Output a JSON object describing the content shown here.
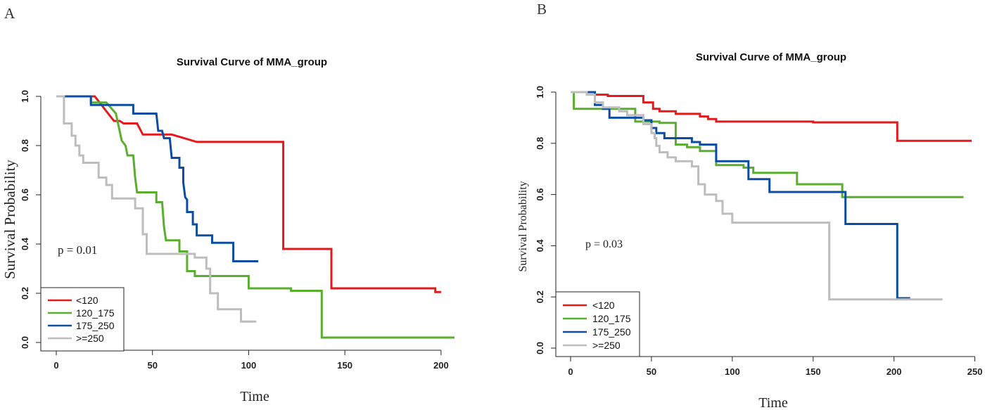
{
  "figure": {
    "panel_letters": [
      "A",
      "B"
    ]
  },
  "chart_data": [
    {
      "type": "line",
      "panel": "A",
      "title": "Survival Curve of MMA_group",
      "xlabel": "Time",
      "ylabel": "Survival Probability",
      "xlim": [
        0,
        207
      ],
      "ylim": [
        0,
        1.0
      ],
      "xticks": [
        0,
        50,
        100,
        150,
        200
      ],
      "yticks": [
        0.0,
        0.2,
        0.4,
        0.6,
        0.8,
        1.0
      ],
      "annotation": "p = 0.01",
      "legend": {
        "position": "bottom-left",
        "entries": [
          "<120",
          "120_175",
          "175_250",
          ">=250"
        ]
      },
      "series": [
        {
          "name": "<120",
          "color": "#e31a1c",
          "points": [
            [
              0,
              1.0
            ],
            [
              20,
              1.0
            ],
            [
              30,
              0.9
            ],
            [
              33,
              0.9
            ],
            [
              35,
              0.89
            ],
            [
              42,
              0.89
            ],
            [
              45,
              0.845
            ],
            [
              60,
              0.845
            ],
            [
              73,
              0.815
            ],
            [
              118,
              0.815
            ],
            [
              118,
              0.38
            ],
            [
              143,
              0.38
            ],
            [
              143,
              0.22
            ],
            [
              197,
              0.22
            ],
            [
              197,
              0.205
            ],
            [
              200,
              0.205
            ]
          ]
        },
        {
          "name": "120_175",
          "color": "#5aae2e",
          "points": [
            [
              0,
              1.0
            ],
            [
              18,
              1.0
            ],
            [
              18,
              0.975
            ],
            [
              26,
              0.975
            ],
            [
              31,
              0.93
            ],
            [
              34,
              0.82
            ],
            [
              36,
              0.8
            ],
            [
              37,
              0.76
            ],
            [
              40,
              0.76
            ],
            [
              41,
              0.67
            ],
            [
              42,
              0.61
            ],
            [
              52,
              0.61
            ],
            [
              52,
              0.57
            ],
            [
              55,
              0.57
            ],
            [
              56,
              0.47
            ],
            [
              57,
              0.415
            ],
            [
              64,
              0.415
            ],
            [
              64,
              0.37
            ],
            [
              68,
              0.37
            ],
            [
              68,
              0.29
            ],
            [
              72,
              0.29
            ],
            [
              72,
              0.27
            ],
            [
              100,
              0.27
            ],
            [
              100,
              0.22
            ],
            [
              122,
              0.22
            ],
            [
              122,
              0.21
            ],
            [
              138,
              0.21
            ],
            [
              138,
              0.02
            ],
            [
              207,
              0.02
            ]
          ]
        },
        {
          "name": "175_250",
          "color": "#0c4da2",
          "points": [
            [
              0,
              1.0
            ],
            [
              18,
              1.0
            ],
            [
              18,
              0.965
            ],
            [
              40,
              0.965
            ],
            [
              40,
              0.93
            ],
            [
              52,
              0.93
            ],
            [
              53,
              0.86
            ],
            [
              55,
              0.86
            ],
            [
              56,
              0.83
            ],
            [
              59,
              0.83
            ],
            [
              60,
              0.75
            ],
            [
              64,
              0.75
            ],
            [
              64,
              0.71
            ],
            [
              66,
              0.71
            ],
            [
              66,
              0.65
            ],
            [
              67,
              0.59
            ],
            [
              68,
              0.58
            ],
            [
              68,
              0.53
            ],
            [
              71,
              0.53
            ],
            [
              71,
              0.48
            ],
            [
              73,
              0.48
            ],
            [
              73,
              0.435
            ],
            [
              81,
              0.435
            ],
            [
              81,
              0.405
            ],
            [
              92,
              0.405
            ],
            [
              92,
              0.33
            ],
            [
              105,
              0.33
            ]
          ]
        },
        {
          "name": ">=250",
          "color": "#bdbdbd",
          "points": [
            [
              0,
              1.0
            ],
            [
              4,
              1.0
            ],
            [
              4,
              0.89
            ],
            [
              8,
              0.89
            ],
            [
              8,
              0.84
            ],
            [
              10,
              0.84
            ],
            [
              10,
              0.8
            ],
            [
              12,
              0.8
            ],
            [
              12,
              0.76
            ],
            [
              14,
              0.76
            ],
            [
              14,
              0.73
            ],
            [
              22,
              0.73
            ],
            [
              22,
              0.67
            ],
            [
              26,
              0.67
            ],
            [
              26,
              0.64
            ],
            [
              29,
              0.64
            ],
            [
              29,
              0.585
            ],
            [
              41,
              0.585
            ],
            [
              41,
              0.545
            ],
            [
              45,
              0.545
            ],
            [
              45,
              0.44
            ],
            [
              47,
              0.44
            ],
            [
              47,
              0.36
            ],
            [
              72,
              0.36
            ],
            [
              72,
              0.345
            ],
            [
              78,
              0.345
            ],
            [
              78,
              0.3
            ],
            [
              80,
              0.3
            ],
            [
              80,
              0.2
            ],
            [
              84,
              0.2
            ],
            [
              84,
              0.135
            ],
            [
              96,
              0.135
            ],
            [
              96,
              0.085
            ],
            [
              104,
              0.085
            ]
          ]
        }
      ]
    },
    {
      "type": "line",
      "panel": "B",
      "title": "Survival Curve of MMA_group",
      "xlabel": "Time",
      "ylabel": "Survival Probability",
      "xlim": [
        0,
        248
      ],
      "ylim": [
        0,
        1.0
      ],
      "xticks": [
        0,
        50,
        100,
        150,
        200,
        250
      ],
      "yticks": [
        0.0,
        0.2,
        0.4,
        0.6,
        0.8,
        1.0
      ],
      "annotation": "p = 0.03",
      "legend": {
        "position": "bottom-left",
        "entries": [
          "<120",
          "120_175",
          "175_250",
          ">=250"
        ]
      },
      "series": [
        {
          "name": "<120",
          "color": "#e31a1c",
          "points": [
            [
              0,
              1.0
            ],
            [
              15,
              1.0
            ],
            [
              15,
              0.99
            ],
            [
              23,
              0.99
            ],
            [
              23,
              0.985
            ],
            [
              45,
              0.985
            ],
            [
              45,
              0.96
            ],
            [
              51,
              0.96
            ],
            [
              51,
              0.935
            ],
            [
              55,
              0.935
            ],
            [
              55,
              0.925
            ],
            [
              65,
              0.925
            ],
            [
              65,
              0.915
            ],
            [
              80,
              0.915
            ],
            [
              80,
              0.905
            ],
            [
              85,
              0.905
            ],
            [
              85,
              0.895
            ],
            [
              90,
              0.895
            ],
            [
              90,
              0.885
            ],
            [
              150,
              0.885
            ],
            [
              150,
              0.882
            ],
            [
              202,
              0.882
            ],
            [
              202,
              0.81
            ],
            [
              248,
              0.81
            ]
          ]
        },
        {
          "name": "120_175",
          "color": "#5aae2e",
          "points": [
            [
              0,
              1.0
            ],
            [
              2,
              1.0
            ],
            [
              2,
              0.935
            ],
            [
              40,
              0.935
            ],
            [
              40,
              0.885
            ],
            [
              55,
              0.885
            ],
            [
              55,
              0.88
            ],
            [
              65,
              0.88
            ],
            [
              65,
              0.795
            ],
            [
              72,
              0.795
            ],
            [
              72,
              0.785
            ],
            [
              80,
              0.785
            ],
            [
              80,
              0.77
            ],
            [
              90,
              0.77
            ],
            [
              90,
              0.715
            ],
            [
              107,
              0.715
            ],
            [
              107,
              0.705
            ],
            [
              113,
              0.705
            ],
            [
              113,
              0.685
            ],
            [
              140,
              0.685
            ],
            [
              140,
              0.64
            ],
            [
              168,
              0.64
            ],
            [
              168,
              0.59
            ],
            [
              243,
              0.59
            ]
          ]
        },
        {
          "name": "175_250",
          "color": "#0c4da2",
          "points": [
            [
              0,
              1.0
            ],
            [
              15,
              1.0
            ],
            [
              15,
              0.95
            ],
            [
              20,
              0.95
            ],
            [
              20,
              0.935
            ],
            [
              24,
              0.935
            ],
            [
              24,
              0.9
            ],
            [
              45,
              0.9
            ],
            [
              45,
              0.89
            ],
            [
              50,
              0.89
            ],
            [
              50,
              0.86
            ],
            [
              53,
              0.86
            ],
            [
              53,
              0.84
            ],
            [
              58,
              0.84
            ],
            [
              58,
              0.82
            ],
            [
              75,
              0.82
            ],
            [
              75,
              0.805
            ],
            [
              80,
              0.805
            ],
            [
              80,
              0.795
            ],
            [
              90,
              0.795
            ],
            [
              90,
              0.73
            ],
            [
              110,
              0.73
            ],
            [
              110,
              0.66
            ],
            [
              123,
              0.66
            ],
            [
              123,
              0.61
            ],
            [
              170,
              0.61
            ],
            [
              170,
              0.485
            ],
            [
              202,
              0.485
            ],
            [
              202,
              0.195
            ],
            [
              210,
              0.195
            ]
          ]
        },
        {
          "name": ">=250",
          "color": "#bdbdbd",
          "points": [
            [
              0,
              1.0
            ],
            [
              10,
              1.0
            ],
            [
              10,
              0.99
            ],
            [
              15,
              0.99
            ],
            [
              15,
              0.96
            ],
            [
              20,
              0.96
            ],
            [
              20,
              0.94
            ],
            [
              30,
              0.94
            ],
            [
              30,
              0.925
            ],
            [
              35,
              0.925
            ],
            [
              35,
              0.91
            ],
            [
              45,
              0.91
            ],
            [
              45,
              0.875
            ],
            [
              50,
              0.875
            ],
            [
              50,
              0.84
            ],
            [
              52,
              0.84
            ],
            [
              52,
              0.82
            ],
            [
              53,
              0.82
            ],
            [
              53,
              0.79
            ],
            [
              55,
              0.79
            ],
            [
              55,
              0.765
            ],
            [
              60,
              0.765
            ],
            [
              60,
              0.745
            ],
            [
              65,
              0.745
            ],
            [
              65,
              0.73
            ],
            [
              75,
              0.73
            ],
            [
              75,
              0.71
            ],
            [
              79,
              0.71
            ],
            [
              79,
              0.64
            ],
            [
              83,
              0.64
            ],
            [
              83,
              0.6
            ],
            [
              90,
              0.6
            ],
            [
              90,
              0.575
            ],
            [
              94,
              0.575
            ],
            [
              94,
              0.525
            ],
            [
              100,
              0.525
            ],
            [
              100,
              0.49
            ],
            [
              160,
              0.49
            ],
            [
              160,
              0.19
            ],
            [
              230,
              0.19
            ]
          ]
        }
      ]
    }
  ]
}
